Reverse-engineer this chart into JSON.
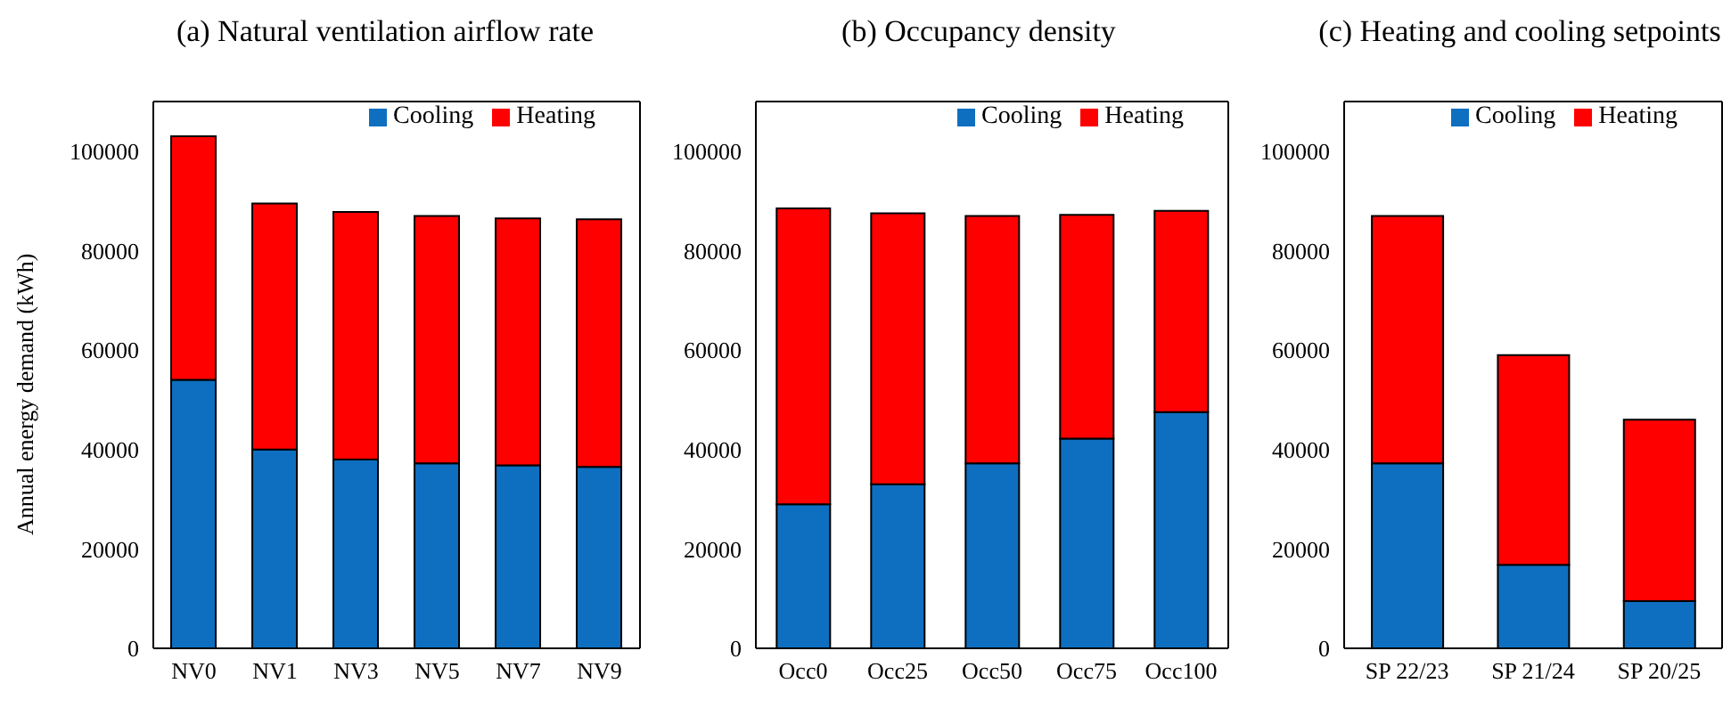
{
  "chart_data": [
    {
      "type": "bar",
      "title": "(a) Natural ventilation airflow rate",
      "ylabel": "Annual energy demand (kWh)",
      "categories": [
        "NV0",
        "NV1",
        "NV3",
        "NV5",
        "NV7",
        "NV9"
      ],
      "stacked": true,
      "series": [
        {
          "name": "Cooling",
          "color": "#0e6fc0",
          "values": [
            54000,
            40000,
            38000,
            37200,
            36800,
            36500
          ]
        },
        {
          "name": "Heating",
          "color": "#ff0000",
          "values": [
            49000,
            49500,
            49800,
            49800,
            49700,
            49800
          ]
        }
      ],
      "ylim": [
        0,
        110000
      ],
      "yticks": [
        0,
        20000,
        40000,
        60000,
        80000,
        100000
      ],
      "grid": false,
      "legend": "top right"
    },
    {
      "type": "bar",
      "title": "(b) Occupancy density",
      "categories": [
        "Occ0",
        "Occ25",
        "Occ50",
        "Occ75",
        "Occ100"
      ],
      "stacked": true,
      "series": [
        {
          "name": "Cooling",
          "color": "#0e6fc0",
          "values": [
            29000,
            33000,
            37200,
            42200,
            47500
          ]
        },
        {
          "name": "Heating",
          "color": "#ff0000",
          "values": [
            59500,
            54500,
            49800,
            45000,
            40500
          ]
        }
      ],
      "ylim": [
        0,
        110000
      ],
      "yticks": [
        0,
        20000,
        40000,
        60000,
        80000,
        100000
      ],
      "grid": false,
      "legend": "top right"
    },
    {
      "type": "bar",
      "title": "(c) Heating and cooling setpoints",
      "categories": [
        "SP 22/23",
        "SP 21/24",
        "SP 20/25"
      ],
      "stacked": true,
      "series": [
        {
          "name": "Cooling",
          "color": "#0e6fc0",
          "values": [
            37200,
            16800,
            9500
          ]
        },
        {
          "name": "Heating",
          "color": "#ff0000",
          "values": [
            49800,
            42200,
            36500
          ]
        }
      ],
      "ylim": [
        0,
        110000
      ],
      "yticks": [
        0,
        20000,
        40000,
        60000,
        80000,
        100000
      ],
      "grid": false,
      "legend": "top right"
    }
  ]
}
